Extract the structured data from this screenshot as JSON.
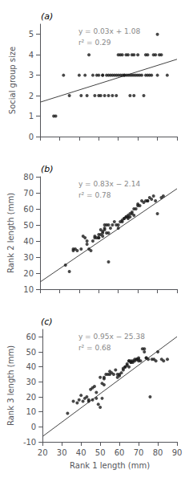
{
  "chart_data": [
    {
      "type": "scatter",
      "title": "(a)",
      "ylabel": "Social group size",
      "annotations": [
        "y = 0.03x + 1.08",
        "r² = 0.29"
      ],
      "xlim": [
        20,
        90
      ],
      "xticks": [
        20,
        30,
        40,
        50,
        60,
        70,
        80,
        90
      ],
      "ylim": [
        0,
        5.5
      ],
      "yticks": [
        0,
        1,
        2,
        3,
        4,
        5
      ],
      "tick_labels": "y",
      "grid": false,
      "series": [
        {
          "type": "scatter",
          "color": "#1a1a1a",
          "x": [
            27,
            28,
            32,
            35,
            40,
            41,
            43,
            44,
            45,
            47,
            48,
            49,
            50,
            50,
            51,
            52,
            52,
            53,
            54,
            55,
            55,
            56,
            57,
            57,
            58,
            59,
            59,
            60,
            60,
            61,
            61,
            62,
            62,
            63,
            63,
            64,
            64,
            65,
            65,
            66,
            66,
            67,
            67,
            68,
            68,
            68,
            69,
            70,
            70,
            71,
            72,
            73,
            74,
            74,
            75,
            75,
            76,
            77,
            78,
            79,
            80,
            80,
            81,
            82,
            85
          ],
          "values": [
            1,
            1,
            3,
            2,
            3,
            2,
            3,
            2,
            4,
            3,
            2,
            3,
            2,
            3,
            2,
            3,
            3,
            2,
            3,
            2,
            3,
            3,
            2,
            3,
            3,
            2,
            3,
            3,
            4,
            3,
            4,
            3,
            4,
            3,
            3,
            3,
            4,
            3,
            4,
            2,
            3,
            3,
            4,
            2,
            3,
            4,
            3,
            3,
            4,
            3,
            3,
            2,
            3,
            4,
            3,
            4,
            3,
            3,
            4,
            4,
            3,
            5,
            4,
            4,
            3
          ]
        },
        {
          "type": "line",
          "color": "#444444",
          "x": [
            20,
            90
          ],
          "values": [
            1.68,
            3.78
          ]
        }
      ]
    },
    {
      "type": "scatter",
      "title": "(b)",
      "ylabel": "Rank 2 length (mm)",
      "annotations": [
        "y = 0.83x − 2.14",
        "r² = 0.78"
      ],
      "xlim": [
        20,
        90
      ],
      "xticks": [
        20,
        30,
        40,
        50,
        60,
        70,
        80,
        90
      ],
      "ylim": [
        10,
        80
      ],
      "yticks": [
        10,
        20,
        30,
        40,
        50,
        60,
        70,
        80
      ],
      "tick_labels": "y",
      "grid": false,
      "series": [
        {
          "type": "scatter",
          "color": "#1a1a1a",
          "x": [
            33,
            35,
            37,
            37,
            38,
            39,
            41,
            42,
            43,
            44,
            44,
            45,
            46,
            47,
            48,
            48,
            49,
            50,
            50,
            50,
            51,
            51,
            52,
            52,
            52,
            53,
            53,
            53,
            54,
            54,
            55,
            55,
            55,
            56,
            57,
            58,
            59,
            60,
            60,
            61,
            62,
            62,
            63,
            63,
            64,
            64,
            65,
            65,
            65,
            66,
            66,
            67,
            67,
            68,
            68,
            69,
            70,
            70,
            71,
            72,
            73,
            74,
            75,
            75,
            76,
            77,
            78,
            79,
            80,
            82,
            83
          ],
          "values": [
            25,
            21,
            35,
            34,
            35,
            34,
            35,
            43,
            42,
            40,
            38,
            35,
            34,
            40,
            43,
            42,
            42,
            44,
            42,
            42,
            47,
            44,
            46,
            43,
            45,
            47,
            48,
            50,
            50,
            45,
            50,
            45,
            27,
            48,
            50,
            52,
            50,
            48,
            50,
            52,
            52,
            53,
            54,
            54,
            55,
            55,
            55,
            54,
            56,
            57,
            55,
            57,
            58,
            56,
            60,
            60,
            62,
            63,
            62,
            65,
            64,
            65,
            65,
            65,
            67,
            66,
            68,
            65,
            57,
            67,
            68
          ]
        },
        {
          "type": "line",
          "color": "#444444",
          "x": [
            20,
            90
          ],
          "values": [
            14.46,
            72.56
          ]
        }
      ]
    },
    {
      "type": "scatter",
      "title": "(c)",
      "ylabel": "Rank 3 length (mm)",
      "xlabel": "Rank 1 length (mm)",
      "annotations": [
        "y = 0.95x − 25.38",
        "r² = 0.68"
      ],
      "xlim": [
        20,
        90
      ],
      "xticks": [
        20,
        30,
        40,
        50,
        60,
        70,
        80,
        90
      ],
      "ylim": [
        -10,
        65
      ],
      "yticks": [
        -10,
        0,
        10,
        20,
        30,
        40,
        50,
        60
      ],
      "grid": false,
      "series": [
        {
          "type": "scatter",
          "color": "#1a1a1a",
          "x": [
            33,
            36,
            38,
            39,
            40,
            41,
            42,
            43,
            44,
            44,
            45,
            46,
            46,
            47,
            48,
            48,
            49,
            50,
            50,
            51,
            51,
            52,
            52,
            52,
            53,
            54,
            55,
            55,
            56,
            57,
            58,
            59,
            59,
            60,
            60,
            61,
            62,
            62,
            63,
            63,
            64,
            64,
            65,
            65,
            65,
            66,
            66,
            66,
            67,
            67,
            68,
            68,
            69,
            69,
            70,
            70,
            70,
            71,
            72,
            73,
            73,
            74,
            74,
            75,
            76,
            77,
            78,
            79,
            80,
            82,
            83,
            85
          ],
          "values": [
            9,
            17,
            16,
            18,
            21,
            17,
            19,
            20,
            17,
            18,
            25,
            26,
            18,
            27,
            23,
            19,
            15,
            13,
            33,
            29,
            19,
            32,
            28,
            33,
            35,
            35,
            35,
            37,
            36,
            35,
            38,
            33,
            35,
            34,
            35,
            36,
            38,
            39,
            40,
            40,
            41,
            42,
            40,
            44,
            44,
            44,
            43,
            43,
            43,
            44,
            44,
            45,
            45,
            45,
            46,
            44,
            45,
            44,
            52,
            50,
            52,
            46,
            46,
            45,
            20,
            45,
            45,
            44,
            50,
            45,
            44,
            45
          ]
        },
        {
          "type": "line",
          "color": "#444444",
          "x": [
            20,
            90
          ],
          "values": [
            -6.38,
            60.12
          ]
        }
      ]
    }
  ]
}
